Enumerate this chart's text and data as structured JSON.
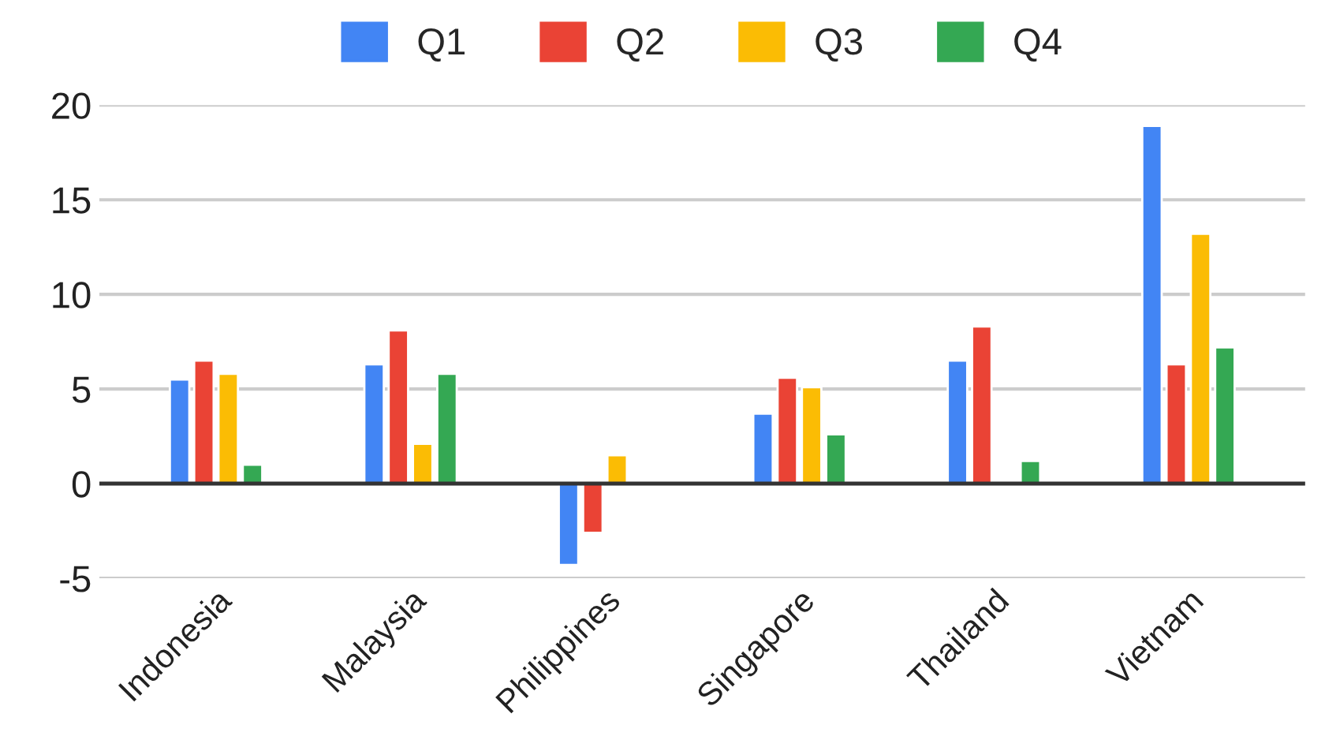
{
  "chart_data": {
    "type": "bar",
    "categories": [
      "Indonesia",
      "Malaysia",
      "Philippines",
      "Singapore",
      "Thailand",
      "Vietnam"
    ],
    "series": [
      {
        "name": "Q1",
        "color": "#4285f4",
        "values": [
          5.5,
          6.3,
          -4.3,
          3.7,
          6.5,
          18.9
        ]
      },
      {
        "name": "Q2",
        "color": "#ea4335",
        "values": [
          6.5,
          8.1,
          -2.6,
          5.6,
          8.3,
          6.3
        ]
      },
      {
        "name": "Q3",
        "color": "#fbbc04",
        "values": [
          5.8,
          2.1,
          1.5,
          5.1,
          null,
          13.2
        ]
      },
      {
        "name": "Q4",
        "color": "#34a853",
        "values": [
          1.0,
          5.8,
          null,
          2.6,
          1.2,
          7.2
        ]
      }
    ],
    "ylim": [
      -5,
      20
    ],
    "yticks": [
      -5,
      0,
      5,
      10,
      15,
      20
    ],
    "grid": "y",
    "legend": "top"
  }
}
